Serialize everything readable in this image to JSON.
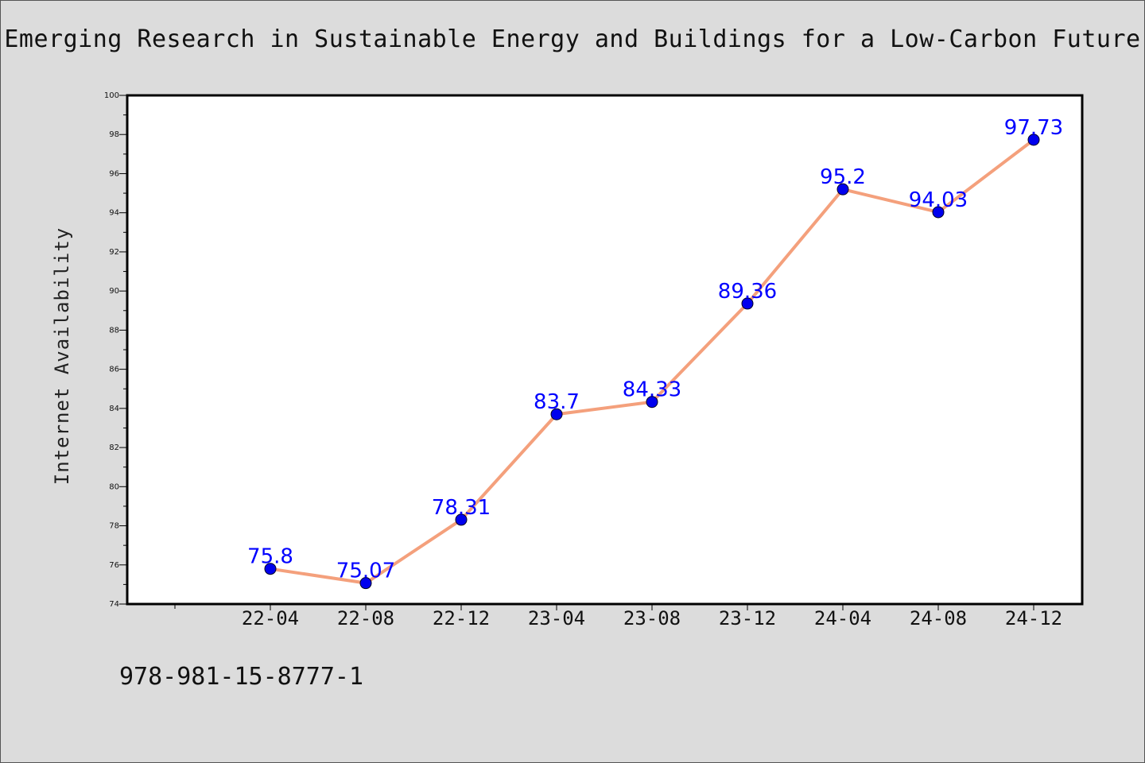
{
  "page": {
    "isbn": "978-981-15-8777-1"
  },
  "chart_data": {
    "type": "line",
    "title": "Emerging Research in Sustainable Energy and Buildings for a Low-Carbon Future",
    "xlabel": "",
    "ylabel": "Internet Availability",
    "categories": [
      "22-04",
      "22-08",
      "22-12",
      "23-04",
      "23-08",
      "23-12",
      "24-04",
      "24-08",
      "24-12"
    ],
    "series": [
      {
        "values": [
          75.8,
          75.07,
          78.31,
          83.7,
          84.33,
          89.36,
          95.2,
          94.03,
          97.73
        ],
        "labels": [
          "75.8",
          "75.07",
          "78.31",
          "83.7",
          "84.33",
          "89.36",
          "95.2",
          "94.03",
          "97.73"
        ],
        "line_color": "#f4a07c",
        "marker_color": "#0000ee"
      }
    ],
    "ylim": [
      74,
      100
    ],
    "yticks": [
      "74",
      "76",
      "78",
      "80",
      "82",
      "84",
      "86",
      "88",
      "90",
      "92",
      "94",
      "96",
      "98",
      "100"
    ],
    "label_color": "#0000ff",
    "plot_background": "#ffffff",
    "grid": false,
    "legend": "none"
  }
}
